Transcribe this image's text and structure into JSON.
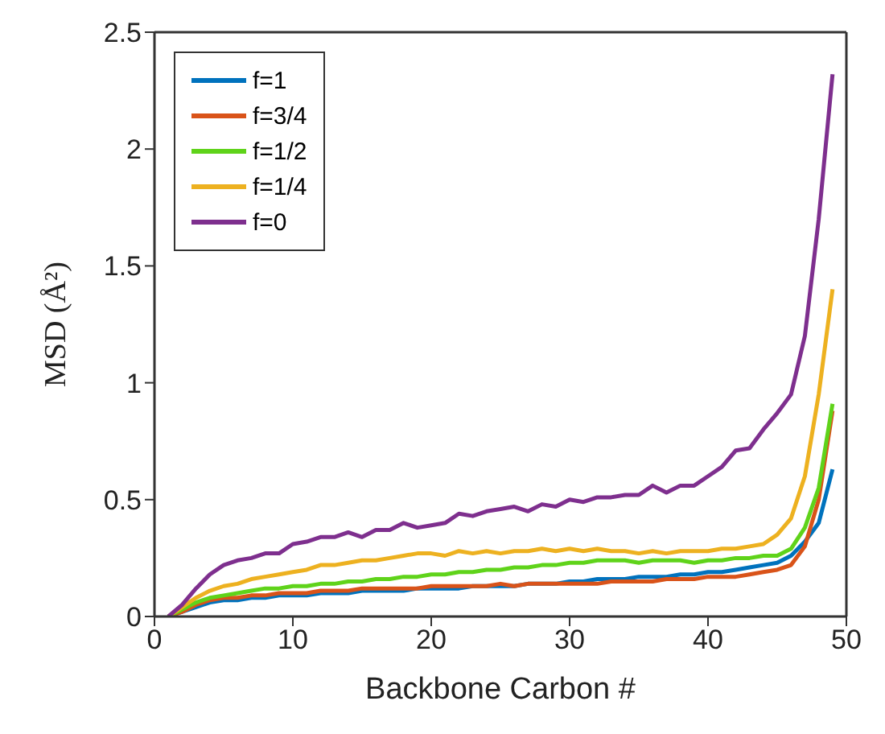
{
  "chart_data": {
    "type": "line",
    "xlabel": "Backbone Carbon #",
    "ylabel": "MSD (Å²)",
    "x": [
      1,
      2,
      3,
      4,
      5,
      6,
      7,
      8,
      9,
      10,
      11,
      12,
      13,
      14,
      15,
      16,
      17,
      18,
      19,
      20,
      21,
      22,
      23,
      24,
      25,
      26,
      27,
      28,
      29,
      30,
      31,
      32,
      33,
      34,
      35,
      36,
      37,
      38,
      39,
      40,
      41,
      42,
      43,
      44,
      45,
      46,
      47,
      48,
      49
    ],
    "series": [
      {
        "name": "f=1",
        "color": "#0072bd",
        "values": [
          0,
          0.02,
          0.04,
          0.06,
          0.07,
          0.07,
          0.08,
          0.08,
          0.09,
          0.09,
          0.09,
          0.1,
          0.1,
          0.1,
          0.11,
          0.11,
          0.11,
          0.11,
          0.12,
          0.12,
          0.12,
          0.12,
          0.13,
          0.13,
          0.13,
          0.13,
          0.14,
          0.14,
          0.14,
          0.15,
          0.15,
          0.16,
          0.16,
          0.16,
          0.17,
          0.17,
          0.17,
          0.18,
          0.18,
          0.19,
          0.19,
          0.2,
          0.21,
          0.22,
          0.23,
          0.26,
          0.32,
          0.4,
          0.63
        ]
      },
      {
        "name": "f=3/4",
        "color": "#d95319",
        "values": [
          0,
          0.02,
          0.05,
          0.07,
          0.08,
          0.08,
          0.09,
          0.09,
          0.1,
          0.1,
          0.1,
          0.11,
          0.11,
          0.11,
          0.12,
          0.12,
          0.12,
          0.12,
          0.12,
          0.13,
          0.13,
          0.13,
          0.13,
          0.13,
          0.14,
          0.13,
          0.14,
          0.14,
          0.14,
          0.14,
          0.14,
          0.14,
          0.15,
          0.15,
          0.15,
          0.15,
          0.16,
          0.16,
          0.16,
          0.17,
          0.17,
          0.17,
          0.18,
          0.19,
          0.2,
          0.22,
          0.3,
          0.5,
          0.88
        ]
      },
      {
        "name": "f=1/2",
        "color": "#5fd31a",
        "values": [
          0,
          0.03,
          0.06,
          0.08,
          0.09,
          0.1,
          0.11,
          0.12,
          0.12,
          0.13,
          0.13,
          0.14,
          0.14,
          0.15,
          0.15,
          0.16,
          0.16,
          0.17,
          0.17,
          0.18,
          0.18,
          0.19,
          0.19,
          0.2,
          0.2,
          0.21,
          0.21,
          0.22,
          0.22,
          0.23,
          0.23,
          0.24,
          0.24,
          0.24,
          0.23,
          0.24,
          0.24,
          0.24,
          0.23,
          0.24,
          0.24,
          0.25,
          0.25,
          0.26,
          0.26,
          0.29,
          0.38,
          0.55,
          0.91
        ]
      },
      {
        "name": "f=1/4",
        "color": "#edb120",
        "values": [
          0,
          0.04,
          0.08,
          0.11,
          0.13,
          0.14,
          0.16,
          0.17,
          0.18,
          0.19,
          0.2,
          0.22,
          0.22,
          0.23,
          0.24,
          0.24,
          0.25,
          0.26,
          0.27,
          0.27,
          0.26,
          0.28,
          0.27,
          0.28,
          0.27,
          0.28,
          0.28,
          0.29,
          0.28,
          0.29,
          0.28,
          0.29,
          0.28,
          0.28,
          0.27,
          0.28,
          0.27,
          0.28,
          0.28,
          0.28,
          0.29,
          0.29,
          0.3,
          0.31,
          0.35,
          0.42,
          0.6,
          0.95,
          1.4
        ]
      },
      {
        "name": "f=0",
        "color": "#7e2f8e",
        "values": [
          0,
          0.05,
          0.12,
          0.18,
          0.22,
          0.24,
          0.25,
          0.27,
          0.27,
          0.31,
          0.32,
          0.34,
          0.34,
          0.36,
          0.34,
          0.37,
          0.37,
          0.4,
          0.38,
          0.39,
          0.4,
          0.44,
          0.43,
          0.45,
          0.46,
          0.47,
          0.45,
          0.48,
          0.47,
          0.5,
          0.49,
          0.51,
          0.51,
          0.52,
          0.52,
          0.56,
          0.53,
          0.56,
          0.56,
          0.6,
          0.64,
          0.71,
          0.72,
          0.8,
          0.87,
          0.95,
          1.2,
          1.7,
          2.32
        ]
      }
    ],
    "xlim": [
      0,
      50
    ],
    "xticks": [
      0,
      10,
      20,
      30,
      40,
      50
    ],
    "ylim": [
      0,
      2.5
    ],
    "yticks": [
      0,
      0.5,
      1,
      1.5,
      2,
      2.5
    ],
    "grid": false,
    "legend": "top left",
    "marker": "none",
    "line_style": "solid"
  }
}
